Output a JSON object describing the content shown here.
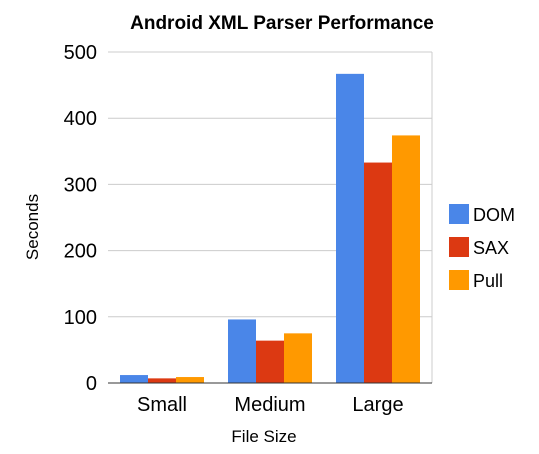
{
  "chart_data": {
    "type": "bar",
    "title": "Android XML Parser Performance",
    "xlabel": "File Size",
    "ylabel": "Seconds",
    "categories": [
      "Small",
      "Medium",
      "Large"
    ],
    "series": [
      {
        "name": "DOM",
        "values": [
          12,
          96,
          467
        ],
        "color": "#4a86e8"
      },
      {
        "name": "SAX",
        "values": [
          7,
          64,
          333
        ],
        "color": "#dc3912"
      },
      {
        "name": "Pull",
        "values": [
          9,
          75,
          374
        ],
        "color": "#ff9900"
      }
    ],
    "ylim": [
      0,
      500
    ],
    "yticks": [
      0,
      100,
      200,
      300,
      400,
      500
    ],
    "grid": true,
    "legend_position": "right"
  }
}
